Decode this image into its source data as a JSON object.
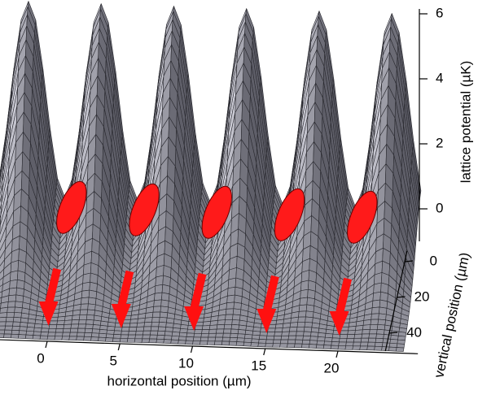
{
  "chart_data": {
    "type": "surface",
    "xlabel": "horizontal position (µm)",
    "ylabel": "vertical position (µm)",
    "zlabel": "lattice potential (µK)",
    "xlim": [
      -4.5,
      24.5
    ],
    "xticks": [
      0,
      5,
      10,
      15,
      20
    ],
    "ylim": [
      0,
      45
    ],
    "yticks": [
      0,
      20,
      40
    ],
    "zlim": [
      -1,
      6
    ],
    "zticks": [
      0,
      2,
      4,
      6
    ],
    "color": "#9a9aa6"
  }
}
